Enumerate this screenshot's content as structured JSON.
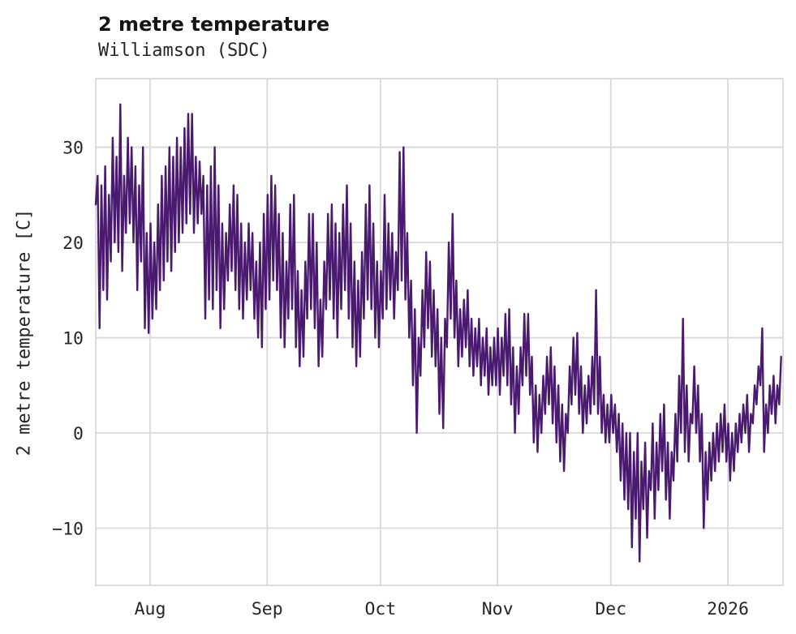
{
  "chart_data": {
    "type": "line",
    "title": "2 metre temperature",
    "subtitle": "Williamson (SDC)",
    "ylabel": "2 metre temperature [C]",
    "xlabel": "",
    "series_name": "2 metre temperature",
    "units": "C",
    "ylim": [
      -16,
      37.2
    ],
    "yticks": [
      {
        "label": "−10",
        "value": -10
      },
      {
        "label": "0",
        "value": 0
      },
      {
        "label": "10",
        "value": 10
      },
      {
        "label": "20",
        "value": 20
      },
      {
        "label": "30",
        "value": 30
      }
    ],
    "xticks": [
      {
        "label": "Aug",
        "day": 14.4
      },
      {
        "label": "Sep",
        "day": 45.4
      },
      {
        "label": "Oct",
        "day": 75.4
      },
      {
        "label": "Nov",
        "day": 106.4
      },
      {
        "label": "Dec",
        "day": 136.4
      },
      {
        "label": "2026",
        "day": 167.4
      }
    ],
    "x_span_days": 182,
    "samples_per_day": 2,
    "grid": true,
    "legend": false,
    "line_color": "#4a1a70",
    "grid_color": "#d9d9d9",
    "text_color": "#262626",
    "values": [
      24,
      27,
      11,
      26,
      15,
      28,
      14,
      25,
      18,
      31,
      20,
      29,
      19,
      34.5,
      17,
      27,
      21,
      31,
      22,
      30,
      20,
      28,
      15,
      26,
      18,
      30,
      11,
      21,
      10.5,
      22,
      12,
      20,
      13,
      24,
      15,
      27,
      16,
      28,
      18,
      30,
      17,
      29,
      19,
      31,
      20,
      30,
      21,
      32,
      22,
      33.5,
      23,
      33.5,
      21,
      29,
      22,
      28.5,
      23,
      27,
      12,
      26,
      14,
      28,
      13,
      30,
      15,
      26,
      11,
      22,
      13,
      21,
      16,
      24,
      17,
      26,
      15,
      25,
      13,
      22,
      12,
      20,
      14,
      22,
      15,
      21,
      12,
      18,
      10,
      20,
      9,
      23,
      13,
      25,
      14,
      27,
      16,
      26,
      15,
      23,
      10,
      21,
      9,
      18,
      12,
      24,
      13,
      25,
      9,
      17,
      7,
      15,
      8,
      18,
      12,
      23,
      13,
      23,
      11,
      20,
      7,
      14,
      8,
      18,
      13,
      23,
      14,
      24,
      12,
      22,
      10,
      21,
      13,
      24,
      15,
      26,
      12,
      22,
      9,
      18,
      7,
      16,
      8,
      19,
      12,
      24,
      14,
      26,
      13,
      22,
      10,
      18,
      9,
      17,
      12,
      25,
      13,
      22,
      14,
      21,
      12,
      19,
      15,
      29.5,
      16,
      30,
      14,
      21,
      10,
      16,
      5,
      13,
      0,
      10,
      6,
      15,
      9,
      19,
      11,
      18,
      8,
      15,
      7,
      13,
      2,
      10,
      0.5,
      12,
      9,
      20,
      12,
      23,
      10,
      16,
      7,
      13,
      8,
      14,
      9,
      15,
      7,
      12,
      6,
      11,
      7,
      12,
      5,
      10,
      6,
      11,
      4,
      9,
      5,
      10,
      5,
      11,
      4,
      10,
      6,
      12.5,
      5,
      13,
      3,
      9,
      0,
      7,
      2,
      9,
      5,
      12.5,
      6,
      12.5,
      4,
      8,
      -1,
      5,
      -2,
      4,
      0,
      6,
      2,
      8,
      3,
      9,
      1,
      7,
      -1,
      5,
      -3,
      3,
      -4,
      2,
      0,
      7,
      3,
      10,
      4,
      10.5,
      2,
      7,
      0,
      5,
      1,
      6,
      2,
      8,
      3,
      15,
      2,
      8,
      0,
      4,
      -1,
      3,
      -1,
      4,
      0,
      3,
      -2,
      2,
      -5,
      1,
      -7,
      0,
      -8,
      0,
      -12,
      -2,
      -9,
      0,
      -13.5,
      -3,
      -8,
      -1,
      -11,
      -4,
      -6,
      1,
      -9,
      -1,
      -6,
      2,
      -4,
      3,
      -7,
      -1,
      -9,
      -2,
      -5,
      2,
      -3,
      6,
      0,
      12,
      -2,
      5,
      -3,
      2,
      1,
      7,
      0,
      5,
      -3,
      2,
      -10,
      -2,
      -7,
      -1,
      -5,
      0,
      -4,
      1,
      -3,
      2,
      -2,
      3,
      -3,
      1,
      -5,
      0,
      -4,
      1,
      -2,
      2,
      -1,
      3,
      0,
      4,
      -2,
      2,
      1,
      5,
      3,
      7,
      5,
      11,
      -2,
      3,
      0,
      5,
      2,
      6,
      1,
      5,
      3,
      8
    ]
  }
}
